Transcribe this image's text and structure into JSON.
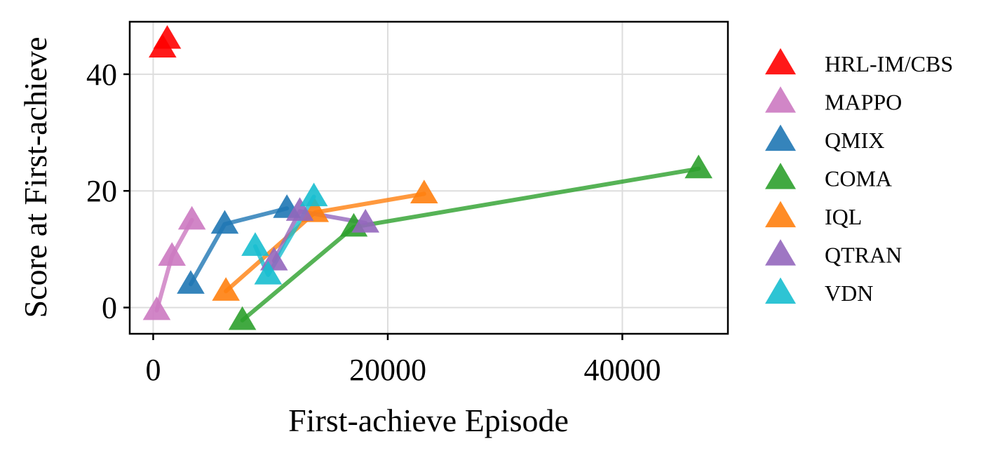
{
  "chart_data": {
    "type": "scatter",
    "title": "",
    "xlabel": "First-achieve Episode",
    "ylabel": "Score at First-achieve",
    "xlim": [
      -2000,
      49000
    ],
    "ylim": [
      -4.5,
      49
    ],
    "xticks": [
      0,
      20000,
      40000
    ],
    "yticks": [
      0,
      20,
      40
    ],
    "x_tick_labels": [
      "0",
      "20000",
      "40000"
    ],
    "y_tick_labels": [
      "0",
      "20",
      "40"
    ],
    "grid": true,
    "legend_placement": "outside-right",
    "marker": "triangle",
    "series": [
      {
        "name": "HRL-IM/CBS",
        "color": "#ff0000",
        "connected": false,
        "points": [
          {
            "x": 800,
            "y": 44.5
          },
          {
            "x": 1200,
            "y": 46.0
          }
        ]
      },
      {
        "name": "MAPPO",
        "color": "#cc79c1",
        "connected": true,
        "points": [
          {
            "x": 300,
            "y": -0.5
          },
          {
            "x": 1600,
            "y": 8.8
          },
          {
            "x": 3300,
            "y": 15.0
          }
        ]
      },
      {
        "name": "QMIX",
        "color": "#1f77b4",
        "connected": true,
        "points": [
          {
            "x": 3200,
            "y": 4.0
          },
          {
            "x": 6100,
            "y": 14.3
          },
          {
            "x": 11400,
            "y": 17.0
          }
        ]
      },
      {
        "name": "COMA",
        "color": "#2ca02c",
        "connected": true,
        "points": [
          {
            "x": 7600,
            "y": -2.2
          },
          {
            "x": 17100,
            "y": 13.8
          },
          {
            "x": 46500,
            "y": 23.8
          }
        ]
      },
      {
        "name": "IQL",
        "color": "#ff7f0e",
        "connected": true,
        "points": [
          {
            "x": 6200,
            "y": 2.8
          },
          {
            "x": 13800,
            "y": 16.3
          },
          {
            "x": 23100,
            "y": 19.5
          }
        ]
      },
      {
        "name": "QTRAN",
        "color": "#9467bd",
        "connected": true,
        "points": [
          {
            "x": 10300,
            "y": 8.0
          },
          {
            "x": 12500,
            "y": 16.5
          },
          {
            "x": 18100,
            "y": 14.5
          }
        ]
      },
      {
        "name": "VDN",
        "color": "#17becf",
        "connected": true,
        "points": [
          {
            "x": 8700,
            "y": 10.5
          },
          {
            "x": 9800,
            "y": 5.6
          },
          {
            "x": 13700,
            "y": 19.0
          }
        ]
      }
    ]
  }
}
